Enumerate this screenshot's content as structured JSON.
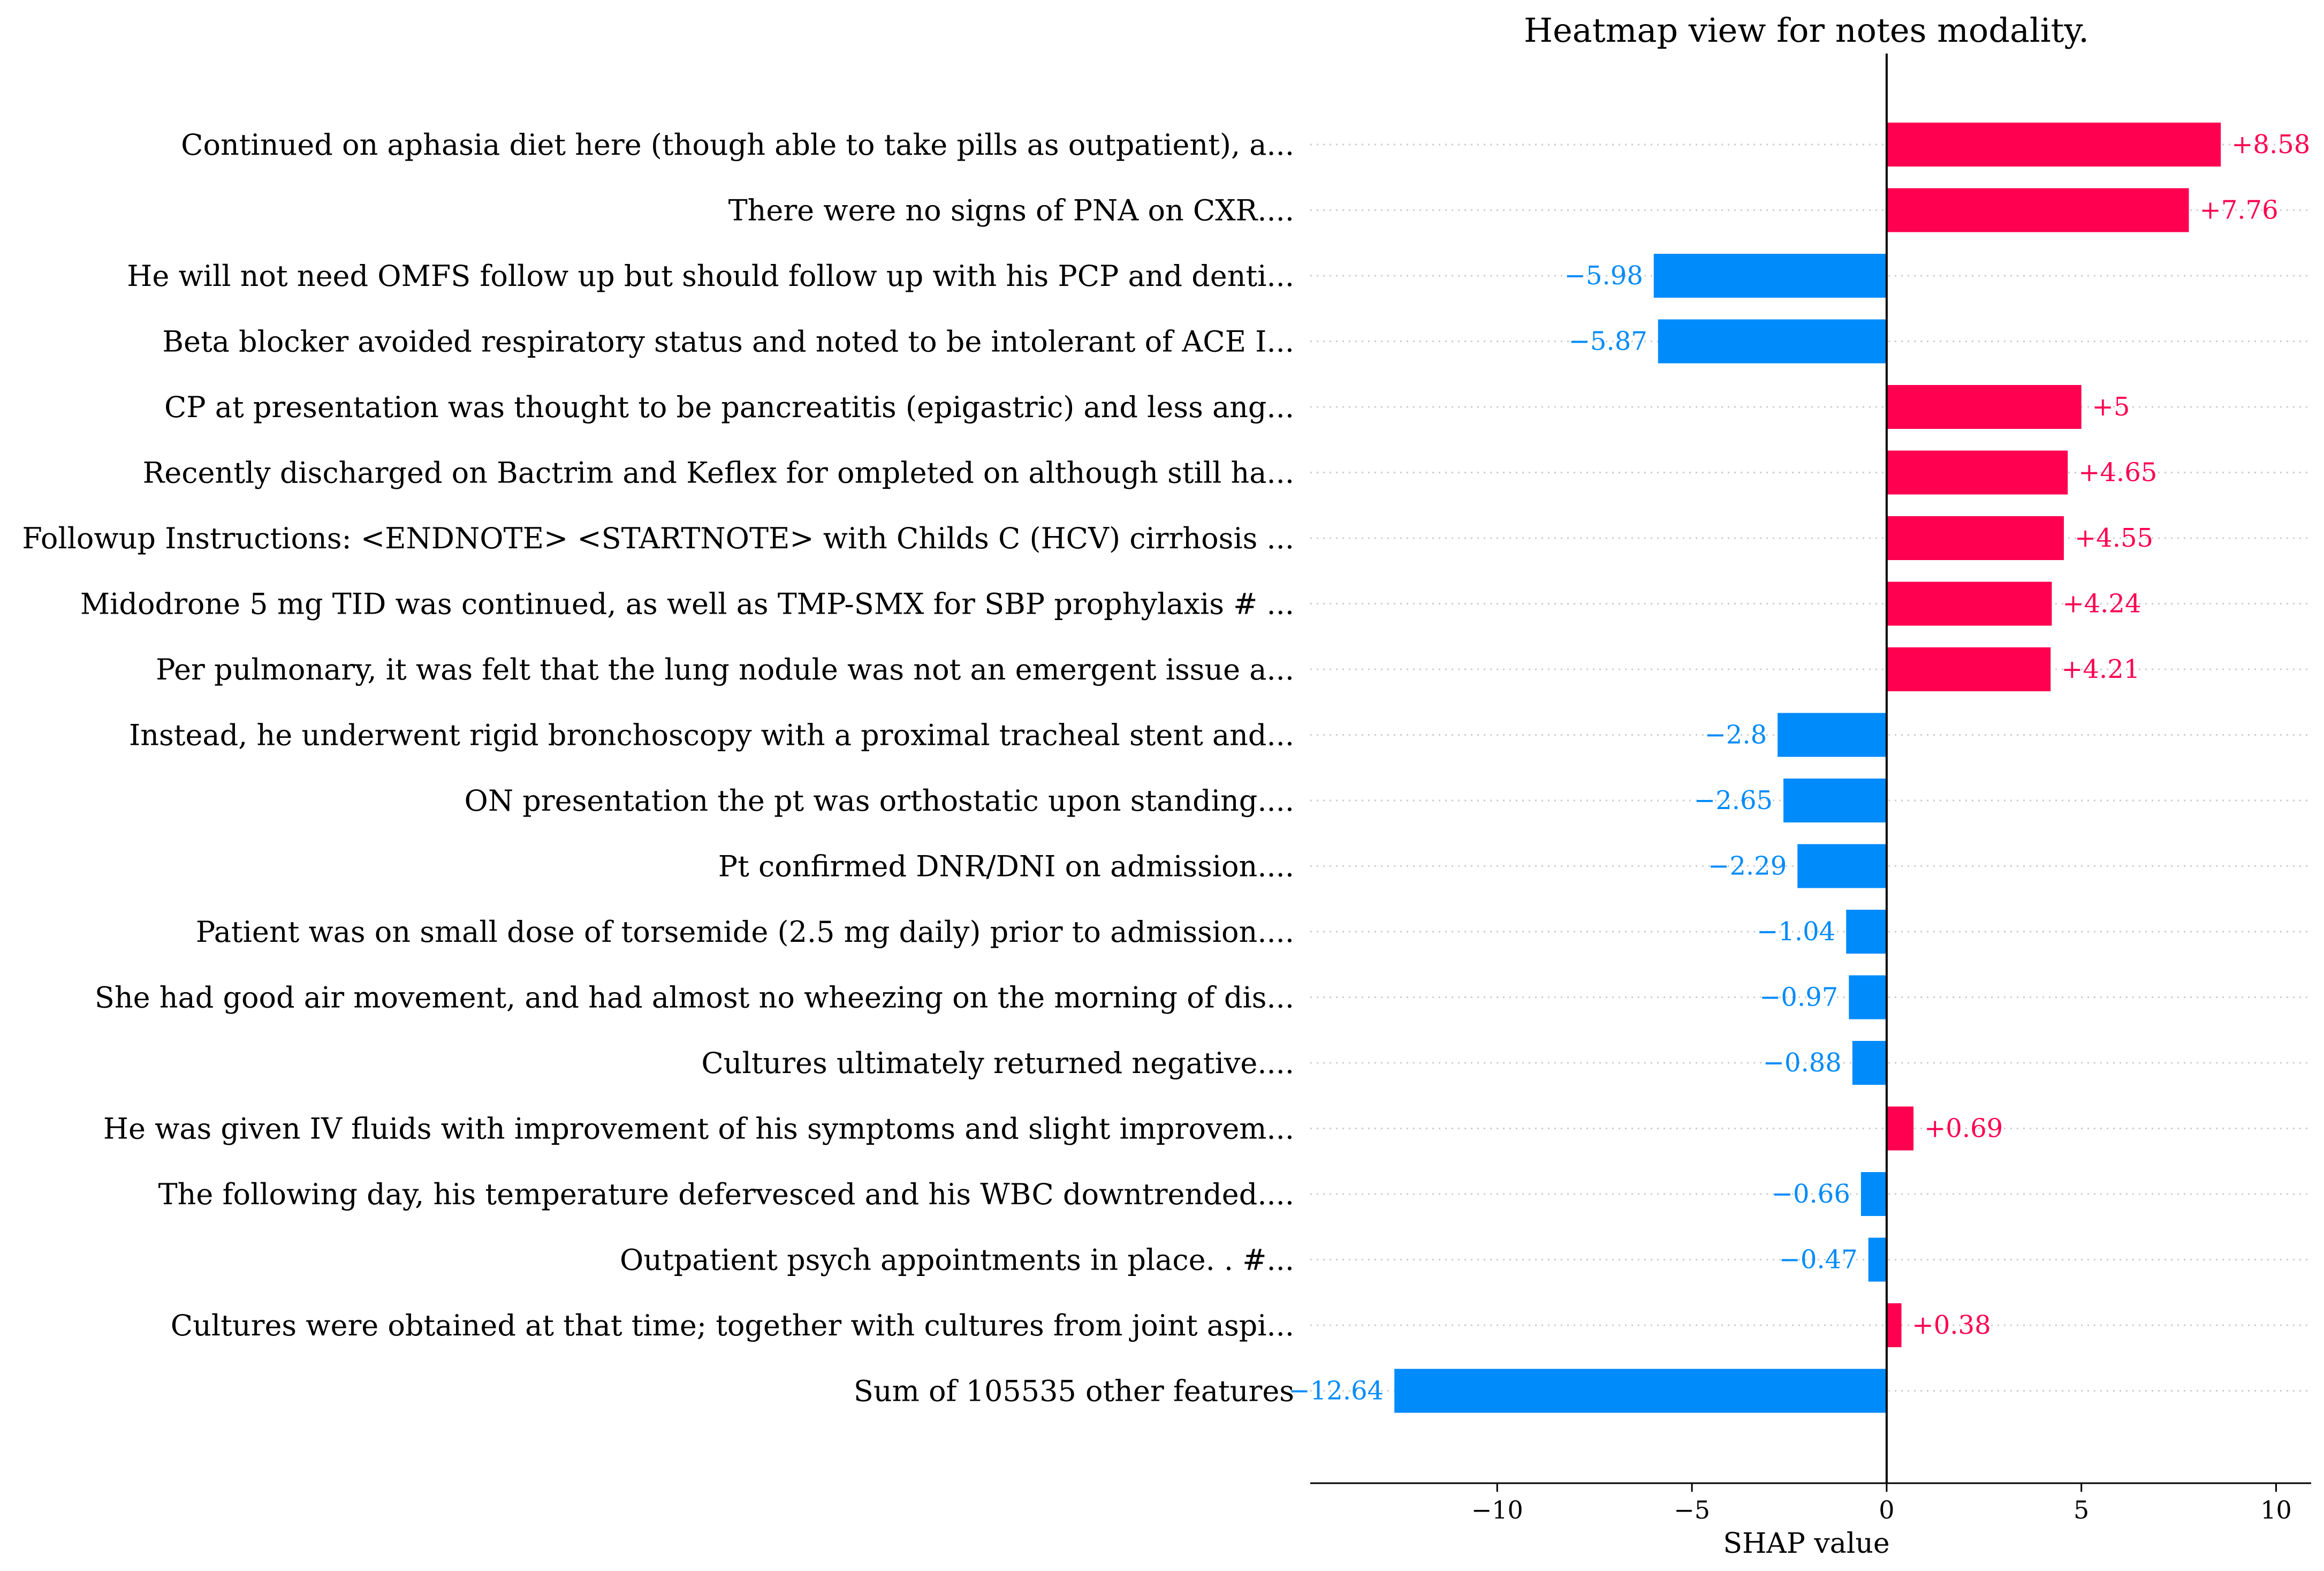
{
  "chart_data": {
    "type": "bar",
    "orientation": "horizontal",
    "title": "Heatmap view for notes modality.",
    "xlabel": "SHAP value",
    "xlim": [
      -14.8,
      10.9
    ],
    "xticks": [
      -10,
      -5,
      0,
      5,
      10
    ],
    "xtick_labels": [
      "−10",
      "−5",
      "0",
      "5",
      "10"
    ],
    "grid": "dotted horizontal guides",
    "colors": {
      "positive": "#ff0051",
      "negative": "#008bfb"
    },
    "bars": [
      {
        "label": "Continued on aphasia diet here (though able to take pills as outpatient), a...",
        "value": 8.58,
        "value_label": "+8.58"
      },
      {
        "label": "There were no signs of PNA on CXR....",
        "value": 7.76,
        "value_label": "+7.76"
      },
      {
        "label": "He will not need OMFS follow up but should follow up with his PCP and denti...",
        "value": -5.98,
        "value_label": "−5.98"
      },
      {
        "label": "Beta blocker avoided respiratory status and noted to be intolerant of ACE I...",
        "value": -5.87,
        "value_label": "−5.87"
      },
      {
        "label": "CP at presentation was thought to be pancreatitis (epigastric) and less ang...",
        "value": 5.0,
        "value_label": "+5"
      },
      {
        "label": "Recently discharged on Bactrim and Keflex for ompleted on although still ha...",
        "value": 4.65,
        "value_label": "+4.65"
      },
      {
        "label": "Followup Instructions: <ENDNOTE> <STARTNOTE> with Childs C (HCV) cirrhosis ...",
        "value": 4.55,
        "value_label": "+4.55"
      },
      {
        "label": "Midodrone 5 mg TID was continued, as well as TMP-SMX for SBP prophylaxis # ...",
        "value": 4.24,
        "value_label": "+4.24"
      },
      {
        "label": "Per pulmonary, it was felt that the lung nodule was not an emergent issue a...",
        "value": 4.21,
        "value_label": "+4.21"
      },
      {
        "label": "Instead, he underwent rigid bronchoscopy with a proximal tracheal stent and...",
        "value": -2.8,
        "value_label": "−2.8"
      },
      {
        "label": "ON presentation the pt was orthostatic upon standing....",
        "value": -2.65,
        "value_label": "−2.65"
      },
      {
        "label": "Pt confirmed DNR/DNI on admission....",
        "value": -2.29,
        "value_label": "−2.29"
      },
      {
        "label": "Patient was on small dose of torsemide (2.5 mg daily) prior to admission....",
        "value": -1.04,
        "value_label": "−1.04"
      },
      {
        "label": "She had good air movement, and had almost no wheezing on the morning of dis...",
        "value": -0.97,
        "value_label": "−0.97"
      },
      {
        "label": "Cultures ultimately returned negative....",
        "value": -0.88,
        "value_label": "−0.88"
      },
      {
        "label": "He was given IV fluids with improvement of his symptoms and slight improvem...",
        "value": 0.69,
        "value_label": "+0.69"
      },
      {
        "label": "The following day, his temperature defervesced and his WBC downtrended....",
        "value": -0.66,
        "value_label": "−0.66"
      },
      {
        "label": "Outpatient psych appointments in place. . #...",
        "value": -0.47,
        "value_label": "−0.47"
      },
      {
        "label": "Cultures were obtained at that time; together with cultures from joint aspi...",
        "value": 0.38,
        "value_label": "+0.38"
      },
      {
        "label": "Sum of 105535 other features",
        "value": -12.64,
        "value_label": "−12.64"
      }
    ]
  }
}
